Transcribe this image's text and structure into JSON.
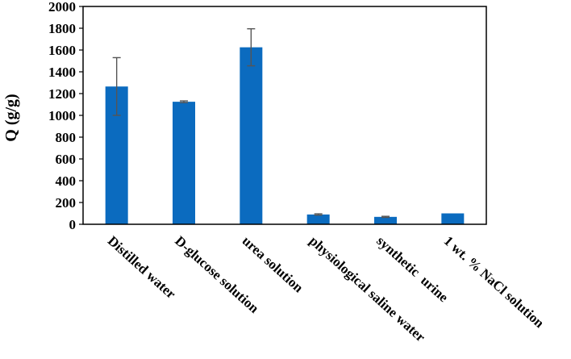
{
  "chart_data": {
    "type": "bar",
    "title": "",
    "xlabel": "",
    "ylabel": "Q (g/g)",
    "ylim": [
      0,
      2000
    ],
    "yticks": [
      0,
      200,
      400,
      600,
      800,
      1000,
      1200,
      1400,
      1600,
      1800,
      2000
    ],
    "grid": false,
    "legend": "none",
    "bar_color": "#0b6bbf",
    "categories": [
      "Distilled water",
      "D-glucose solution",
      "urea solution",
      "physiological saline water",
      "synthetic  urine",
      "1 wt. % NaCl solution"
    ],
    "values": [
      1265,
      1125,
      1625,
      90,
      68,
      100
    ],
    "errors": [
      265,
      8,
      170,
      6,
      5,
      0
    ]
  }
}
